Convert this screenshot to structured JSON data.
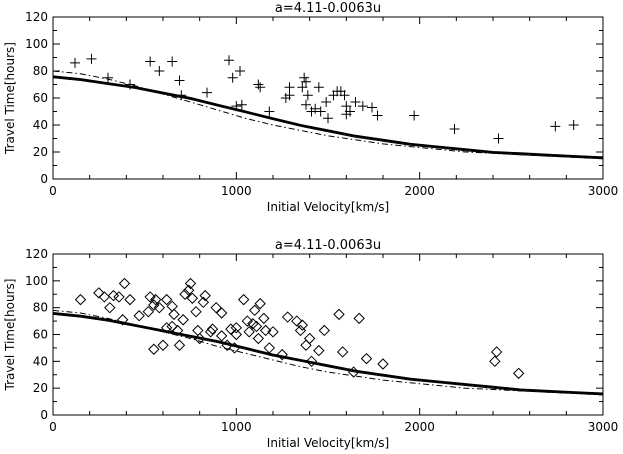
{
  "chart_data": [
    {
      "type": "scatter",
      "title": "a=4.11-0.0063u",
      "xlabel": "Initial Velocity[km/s]",
      "ylabel": "Travel Time[hours]",
      "xlim": [
        0,
        3000
      ],
      "ylim": [
        0,
        120
      ],
      "xticks": [
        0,
        1000,
        2000,
        3000
      ],
      "yticks": [
        0,
        20,
        40,
        60,
        80,
        100,
        120
      ],
      "marker": "plus",
      "grid": false,
      "points": [
        [
          120,
          86
        ],
        [
          210,
          89
        ],
        [
          300,
          75
        ],
        [
          420,
          70
        ],
        [
          530,
          87
        ],
        [
          580,
          80
        ],
        [
          650,
          87
        ],
        [
          690,
          73
        ],
        [
          700,
          62
        ],
        [
          840,
          64
        ],
        [
          960,
          88
        ],
        [
          980,
          75
        ],
        [
          1020,
          80
        ],
        [
          1000,
          54
        ],
        [
          1030,
          55
        ],
        [
          1120,
          70
        ],
        [
          1130,
          68
        ],
        [
          1180,
          50
        ],
        [
          1270,
          60
        ],
        [
          1290,
          62
        ],
        [
          1290,
          68
        ],
        [
          1360,
          68
        ],
        [
          1370,
          75
        ],
        [
          1380,
          72
        ],
        [
          1390,
          62
        ],
        [
          1380,
          55
        ],
        [
          1410,
          50
        ],
        [
          1430,
          52
        ],
        [
          1450,
          68
        ],
        [
          1460,
          50
        ],
        [
          1490,
          57
        ],
        [
          1500,
          45
        ],
        [
          1530,
          62
        ],
        [
          1550,
          65
        ],
        [
          1570,
          65
        ],
        [
          1590,
          62
        ],
        [
          1600,
          54
        ],
        [
          1600,
          48
        ],
        [
          1620,
          50
        ],
        [
          1650,
          57
        ],
        [
          1690,
          54
        ],
        [
          1740,
          53
        ],
        [
          1770,
          47
        ],
        [
          1970,
          47
        ],
        [
          2190,
          37
        ],
        [
          2430,
          30
        ],
        [
          2740,
          39
        ],
        [
          2840,
          40
        ]
      ],
      "curves": [
        {
          "style": "solid-thick",
          "x": [
            0,
            150,
            300,
            450,
            600,
            750,
            900,
            1050,
            1200,
            1350,
            1500,
            1650,
            1800,
            1950,
            2100,
            2250,
            2400,
            2550,
            2700,
            2850,
            3000
          ],
          "y": [
            76,
            74,
            71,
            68,
            64,
            60,
            55,
            50,
            45,
            40,
            36,
            32,
            29,
            26,
            24,
            22,
            20,
            19,
            18,
            17,
            16
          ]
        },
        {
          "style": "solid-thin",
          "x": [
            0,
            150,
            300,
            450,
            600,
            750,
            900,
            1050,
            1200,
            1350,
            1500,
            1650,
            1800,
            1950,
            2100,
            2250,
            2400,
            2550,
            2700,
            2850,
            3000
          ],
          "y": [
            75,
            73,
            70,
            67,
            63,
            59,
            54,
            49,
            44,
            39,
            35,
            31,
            28,
            25,
            23,
            21,
            19,
            18,
            17,
            16,
            15
          ]
        },
        {
          "style": "dash-dot",
          "x": [
            0,
            150,
            300,
            450,
            600,
            750,
            900,
            1050,
            1200,
            1350,
            1500,
            1650,
            1800,
            1950,
            2100,
            2250,
            2400,
            2550,
            2700,
            2850,
            3000
          ],
          "y": [
            80,
            78,
            74,
            69,
            63,
            57,
            51,
            45,
            40,
            36,
            32,
            29,
            26,
            24,
            22,
            20,
            19,
            18,
            17,
            16,
            15
          ]
        }
      ]
    },
    {
      "type": "scatter",
      "title": "a=4.11-0.0063u",
      "xlabel": "Initial Velocity[km/s]",
      "ylabel": "Travel Time[hours]",
      "xlim": [
        0,
        3000
      ],
      "ylim": [
        0,
        120
      ],
      "xticks": [
        0,
        1000,
        2000,
        3000
      ],
      "yticks": [
        0,
        20,
        40,
        60,
        80,
        100,
        120
      ],
      "marker": "diamond",
      "grid": false,
      "points": [
        [
          150,
          86
        ],
        [
          250,
          91
        ],
        [
          280,
          88
        ],
        [
          310,
          80
        ],
        [
          330,
          89
        ],
        [
          380,
          71
        ],
        [
          360,
          88
        ],
        [
          390,
          98
        ],
        [
          420,
          86
        ],
        [
          470,
          74
        ],
        [
          520,
          77
        ],
        [
          530,
          88
        ],
        [
          550,
          82
        ],
        [
          550,
          49
        ],
        [
          560,
          86
        ],
        [
          580,
          80
        ],
        [
          600,
          52
        ],
        [
          620,
          65
        ],
        [
          620,
          86
        ],
        [
          650,
          66
        ],
        [
          650,
          81
        ],
        [
          660,
          75
        ],
        [
          680,
          63
        ],
        [
          690,
          52
        ],
        [
          710,
          71
        ],
        [
          720,
          90
        ],
        [
          740,
          93
        ],
        [
          750,
          98
        ],
        [
          760,
          87
        ],
        [
          780,
          77
        ],
        [
          790,
          63
        ],
        [
          800,
          57
        ],
        [
          820,
          84
        ],
        [
          830,
          89
        ],
        [
          860,
          62
        ],
        [
          870,
          64
        ],
        [
          890,
          80
        ],
        [
          920,
          76
        ],
        [
          920,
          59
        ],
        [
          950,
          52
        ],
        [
          970,
          64
        ],
        [
          990,
          50
        ],
        [
          1000,
          65
        ],
        [
          1000,
          60
        ],
        [
          1040,
          86
        ],
        [
          1060,
          70
        ],
        [
          1070,
          62
        ],
        [
          1090,
          68
        ],
        [
          1100,
          78
        ],
        [
          1110,
          66
        ],
        [
          1120,
          57
        ],
        [
          1130,
          83
        ],
        [
          1150,
          72
        ],
        [
          1160,
          63
        ],
        [
          1180,
          50
        ],
        [
          1200,
          62
        ],
        [
          1250,
          45
        ],
        [
          1280,
          73
        ],
        [
          1330,
          70
        ],
        [
          1350,
          63
        ],
        [
          1360,
          67
        ],
        [
          1380,
          52
        ],
        [
          1400,
          57
        ],
        [
          1410,
          40
        ],
        [
          1450,
          48
        ],
        [
          1480,
          63
        ],
        [
          1560,
          75
        ],
        [
          1580,
          47
        ],
        [
          1640,
          32
        ],
        [
          1670,
          72
        ],
        [
          1710,
          42
        ],
        [
          1800,
          38
        ],
        [
          2410,
          40
        ],
        [
          2420,
          47
        ],
        [
          2540,
          31
        ]
      ],
      "curves": [
        {
          "style": "solid-thick",
          "x": [
            0,
            150,
            300,
            450,
            600,
            750,
            900,
            1050,
            1200,
            1350,
            1500,
            1650,
            1800,
            1950,
            2100,
            2250,
            2400,
            2550,
            2700,
            2850,
            3000
          ],
          "y": [
            76,
            74,
            71,
            67,
            63,
            59,
            55,
            50,
            45,
            41,
            37,
            33,
            30,
            27,
            25,
            23,
            21,
            19,
            18,
            17,
            16
          ]
        },
        {
          "style": "solid-thin",
          "x": [
            0,
            150,
            300,
            450,
            600,
            750,
            900,
            1050,
            1200,
            1350,
            1500,
            1650,
            1800,
            1950,
            2100,
            2250,
            2400,
            2550,
            2700,
            2850,
            3000
          ],
          "y": [
            75,
            73,
            70,
            66,
            62,
            58,
            54,
            49,
            44,
            40,
            36,
            32,
            29,
            26,
            24,
            22,
            20,
            18,
            17,
            16,
            15
          ]
        },
        {
          "style": "dash-dot",
          "x": [
            0,
            150,
            300,
            450,
            600,
            750,
            900,
            1050,
            1200,
            1350,
            1500,
            1650,
            1800,
            1950,
            2100,
            2250,
            2400,
            2550,
            2700,
            2850,
            3000
          ],
          "y": [
            78,
            76,
            72,
            67,
            62,
            57,
            51,
            46,
            41,
            36,
            32,
            29,
            26,
            24,
            22,
            20,
            19,
            18,
            17,
            16,
            15
          ]
        }
      ]
    }
  ]
}
